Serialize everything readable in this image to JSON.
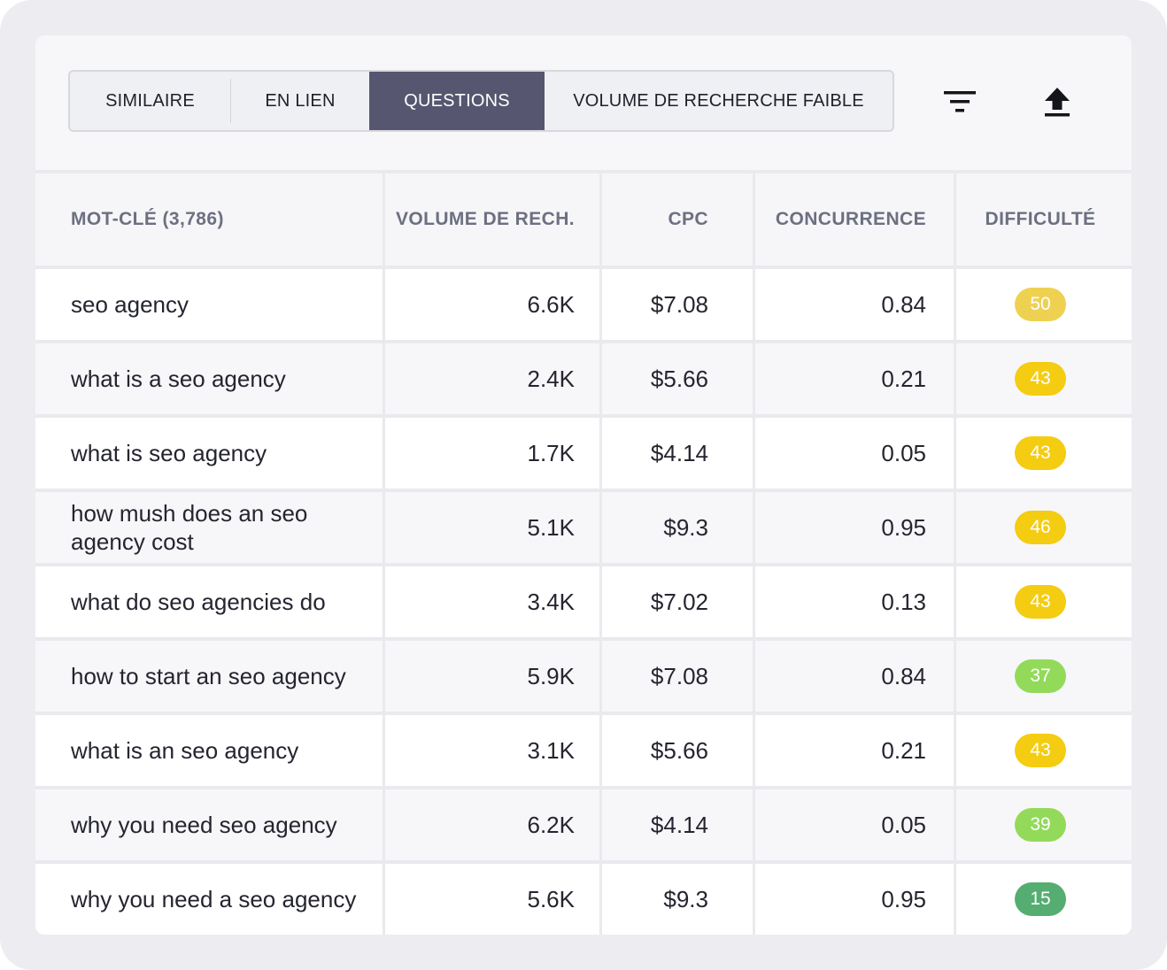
{
  "tabs": [
    {
      "label": "SIMILAIRE",
      "active": false
    },
    {
      "label": "EN LIEN",
      "active": false
    },
    {
      "label": "QUESTIONS",
      "active": true
    },
    {
      "label": "VOLUME DE RECHERCHE FAIBLE",
      "active": false
    }
  ],
  "toolbar_icons": [
    "filter-icon",
    "export-icon"
  ],
  "table": {
    "headers": [
      "MOT-CLÉ (3,786)",
      "VOLUME DE RECH.",
      "CPC",
      "CONCURRENCE",
      "DIFFICULTÉ"
    ],
    "rows": [
      {
        "keyword": "seo agency",
        "volume": "6.6K",
        "cpc": "$7.08",
        "competition": "0.84",
        "difficulty": "50",
        "difficulty_color": "#efd152"
      },
      {
        "keyword": "what is a seo agency",
        "volume": "2.4K",
        "cpc": "$5.66",
        "competition": "0.21",
        "difficulty": "43",
        "difficulty_color": "#f4cc12"
      },
      {
        "keyword": "what is seo agency",
        "volume": "1.7K",
        "cpc": "$4.14",
        "competition": "0.05",
        "difficulty": "43",
        "difficulty_color": "#f4cc12"
      },
      {
        "keyword": "how mush does an seo agency cost",
        "volume": "5.1K",
        "cpc": "$9.3",
        "competition": "0.95",
        "difficulty": "46",
        "difficulty_color": "#f4cc12"
      },
      {
        "keyword": "what do seo agencies do",
        "volume": "3.4K",
        "cpc": "$7.02",
        "competition": "0.13",
        "difficulty": "43",
        "difficulty_color": "#f4cc12"
      },
      {
        "keyword": "how to start an seo agency",
        "volume": "5.9K",
        "cpc": "$7.08",
        "competition": "0.84",
        "difficulty": "37",
        "difficulty_color": "#93da5b"
      },
      {
        "keyword": "what is an seo agency",
        "volume": "3.1K",
        "cpc": "$5.66",
        "competition": "0.21",
        "difficulty": "43",
        "difficulty_color": "#f4cc12"
      },
      {
        "keyword": "why you need seo agency",
        "volume": "6.2K",
        "cpc": "$4.14",
        "competition": "0.05",
        "difficulty": "39",
        "difficulty_color": "#93da5b"
      },
      {
        "keyword": "why you need a seo agency",
        "volume": "5.6K",
        "cpc": "$9.3",
        "competition": "0.95",
        "difficulty": "15",
        "difficulty_color": "#55ad71"
      }
    ]
  }
}
